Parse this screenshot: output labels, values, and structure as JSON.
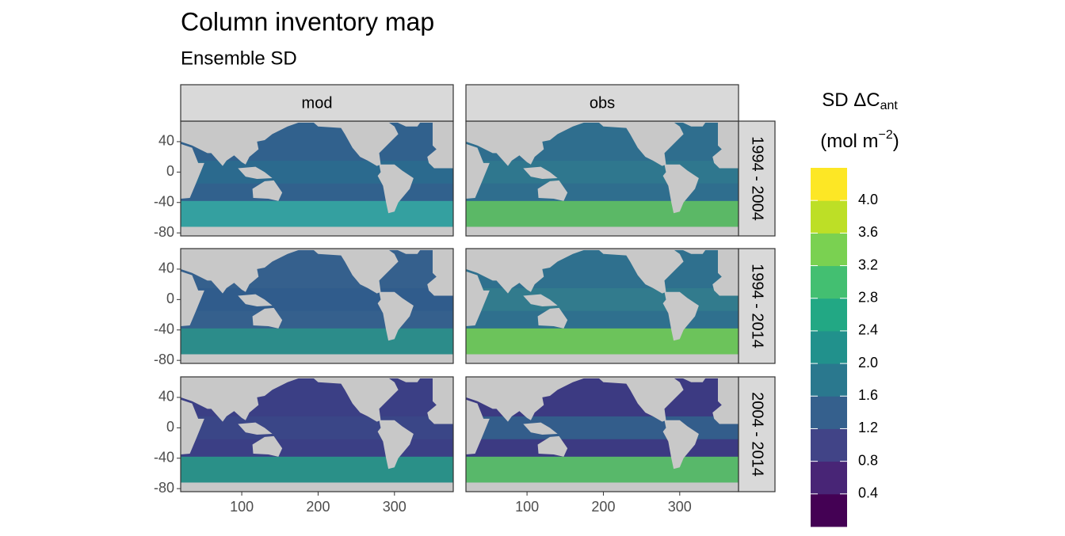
{
  "chart_data": {
    "type": "map",
    "title": "Column inventory map",
    "subtitle": "Ensemble SD",
    "facet_columns": [
      "mod",
      "obs"
    ],
    "facet_rows": [
      "1994 - 2004",
      "1994 - 2014",
      "2004 - 2014"
    ],
    "xlim": [
      20,
      377
    ],
    "xticks": [
      100,
      200,
      300
    ],
    "ylim": [
      -84,
      67
    ],
    "yticks": [
      40,
      0,
      -40,
      -80
    ],
    "legend_title": {
      "name": "SD ΔC",
      "sub": "ant",
      "unit": "(mol m",
      "sup": "−2",
      "close": ")"
    },
    "legend": {
      "breaks": [
        0,
        0.4,
        0.8,
        1.2,
        1.6,
        2.0,
        2.4,
        2.8,
        3.2,
        3.6,
        4.0,
        4.4
      ],
      "colors": [
        "#440154",
        "#482576",
        "#414487",
        "#35608d",
        "#2a788e",
        "#21918c",
        "#22a884",
        "#43bf71",
        "#7ad151",
        "#bddf26",
        "#fde725"
      ],
      "ticks": [
        0.4,
        0.8,
        1.2,
        1.6,
        {
          "value": 2,
          "label": "2.0"
        },
        2.4,
        2.8,
        3.2,
        3.6,
        {
          "value": 4,
          "label": "4.0"
        }
      ]
    }
  }
}
